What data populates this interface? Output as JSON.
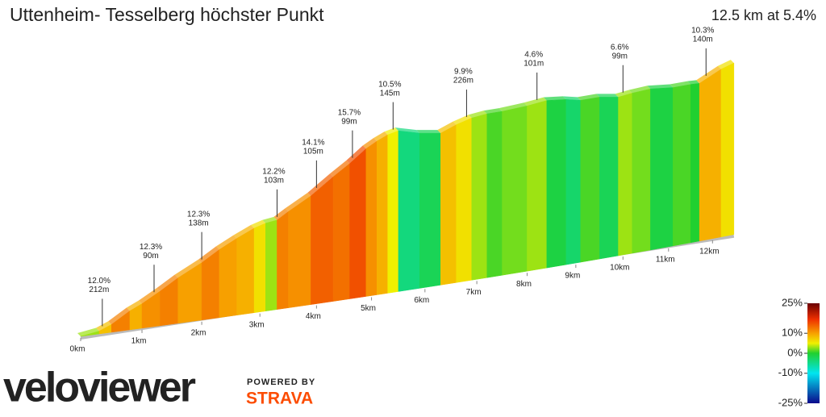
{
  "chart_data": {
    "type": "profile",
    "title": "Uttenheim- Tesselberg höchster Punkt",
    "subtitle": "12.5 km at 5.4%",
    "x": [
      0,
      0.3,
      0.5,
      0.8,
      1.0,
      1.3,
      1.6,
      2.0,
      2.3,
      2.6,
      2.9,
      3.1,
      3.3,
      3.5,
      3.9,
      4.3,
      4.6,
      4.9,
      5.1,
      5.3,
      5.5,
      5.9,
      6.3,
      6.6,
      6.9,
      7.2,
      7.5,
      8.0,
      8.4,
      8.8,
      9.1,
      9.5,
      9.9,
      10.2,
      10.6,
      11.1,
      11.5,
      11.7,
      12.2
    ],
    "values": [
      3,
      8,
      12,
      9,
      11,
      12,
      10,
      12,
      10,
      9,
      6,
      3,
      12,
      11,
      14,
      13,
      15,
      11,
      9,
      5,
      -4,
      -2,
      8,
      6,
      3,
      1,
      2,
      3,
      -1,
      -3,
      1,
      -2,
      3,
      2,
      -1,
      1,
      0,
      9,
      6
    ],
    "xlim": [
      0,
      12.5
    ],
    "xticks": [
      {
        "value": 0,
        "label": "0km"
      },
      {
        "value": 1,
        "label": "1km"
      },
      {
        "value": 2,
        "label": "2km"
      },
      {
        "value": 3,
        "label": "3km"
      },
      {
        "value": 4,
        "label": "4km"
      },
      {
        "value": 5,
        "label": "5km"
      },
      {
        "value": 6,
        "label": "6km"
      },
      {
        "value": 7,
        "label": "7km"
      },
      {
        "value": 8,
        "label": "8km"
      },
      {
        "value": 9,
        "label": "9km"
      },
      {
        "value": 10,
        "label": "10km"
      },
      {
        "value": 11,
        "label": "11km"
      },
      {
        "value": 12,
        "label": "12km"
      }
    ],
    "annotations": [
      {
        "x": 0.35,
        "grade": "12.0%",
        "length": "212m"
      },
      {
        "x": 1.2,
        "grade": "12.3%",
        "length": "90m"
      },
      {
        "x": 2.0,
        "grade": "12.3%",
        "length": "138m"
      },
      {
        "x": 3.3,
        "grade": "12.2%",
        "length": "103m"
      },
      {
        "x": 4.0,
        "grade": "14.1%",
        "length": "105m"
      },
      {
        "x": 4.65,
        "grade": "15.7%",
        "length": "99m"
      },
      {
        "x": 5.4,
        "grade": "10.5%",
        "length": "145m"
      },
      {
        "x": 6.8,
        "grade": "9.9%",
        "length": "226m"
      },
      {
        "x": 8.2,
        "grade": "4.6%",
        "length": "101m"
      },
      {
        "x": 10.0,
        "grade": "6.6%",
        "length": "99m"
      },
      {
        "x": 11.85,
        "grade": "10.3%",
        "length": "140m"
      }
    ],
    "colorbar": {
      "lim": [
        -25,
        25
      ],
      "ticks": [
        {
          "value": 25,
          "label": "25%"
        },
        {
          "value": 10,
          "label": "10%"
        },
        {
          "value": 0,
          "label": "0%"
        },
        {
          "value": -10,
          "label": "-10%"
        },
        {
          "value": -25,
          "label": "-25%"
        }
      ],
      "stops": [
        [
          -25,
          "#0a0a8c"
        ],
        [
          -10,
          "#00e5f0"
        ],
        [
          0,
          "#20d030"
        ],
        [
          5,
          "#f0f000"
        ],
        [
          10,
          "#f7a000"
        ],
        [
          17,
          "#ee3000"
        ],
        [
          25,
          "#6a0000"
        ]
      ]
    }
  },
  "logo": {
    "brand": "veloviewer",
    "powered": "POWERED BY",
    "partner": "STRAVA"
  }
}
